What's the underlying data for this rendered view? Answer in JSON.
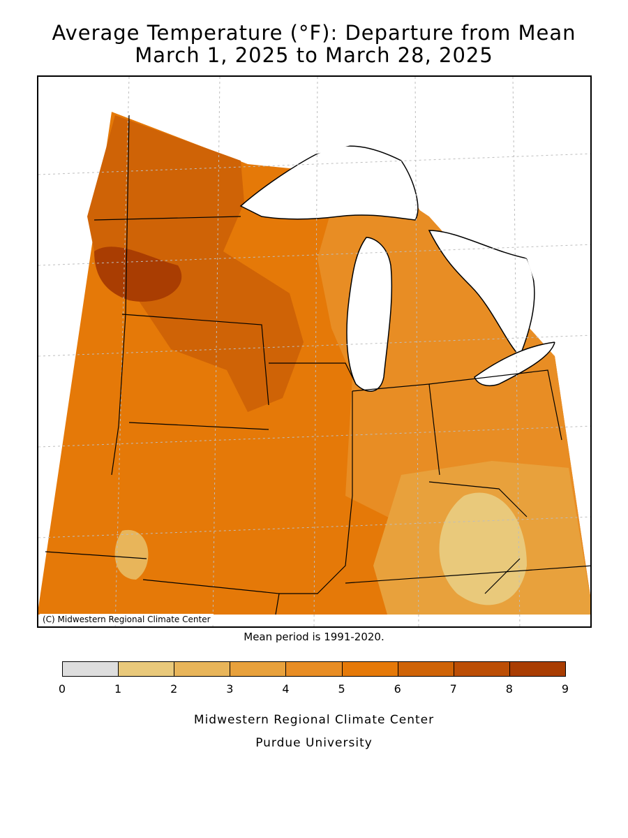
{
  "title": {
    "line1": "Average Temperature (°F): Departure from Mean",
    "line2": "March 1, 2025 to March 28, 2025"
  },
  "map": {
    "copyright": "(C) Midwestern Regional Climate Center",
    "mean_note": "Mean period is 1991-2020.",
    "colors": {
      "lake": "#ffffff",
      "state_border": "#000000",
      "graticule": "#bdbdbd"
    }
  },
  "legend": {
    "ticks": [
      "0",
      "1",
      "2",
      "3",
      "4",
      "5",
      "6",
      "7",
      "8",
      "9"
    ],
    "bins": [
      {
        "from": 0,
        "to": 1,
        "color": "#dedede"
      },
      {
        "from": 1,
        "to": 2,
        "color": "#e9c97b"
      },
      {
        "from": 2,
        "to": 3,
        "color": "#e8b55a"
      },
      {
        "from": 3,
        "to": 4,
        "color": "#e8a13c"
      },
      {
        "from": 4,
        "to": 5,
        "color": "#e88d24"
      },
      {
        "from": 5,
        "to": 6,
        "color": "#e57908"
      },
      {
        "from": 6,
        "to": 7,
        "color": "#cf6306"
      },
      {
        "from": 7,
        "to": 8,
        "color": "#bc4e05"
      },
      {
        "from": 8,
        "to": 9,
        "color": "#a93d02"
      }
    ]
  },
  "footer": {
    "line1": "Midwestern Regional Climate Center",
    "line2": "Purdue University"
  }
}
